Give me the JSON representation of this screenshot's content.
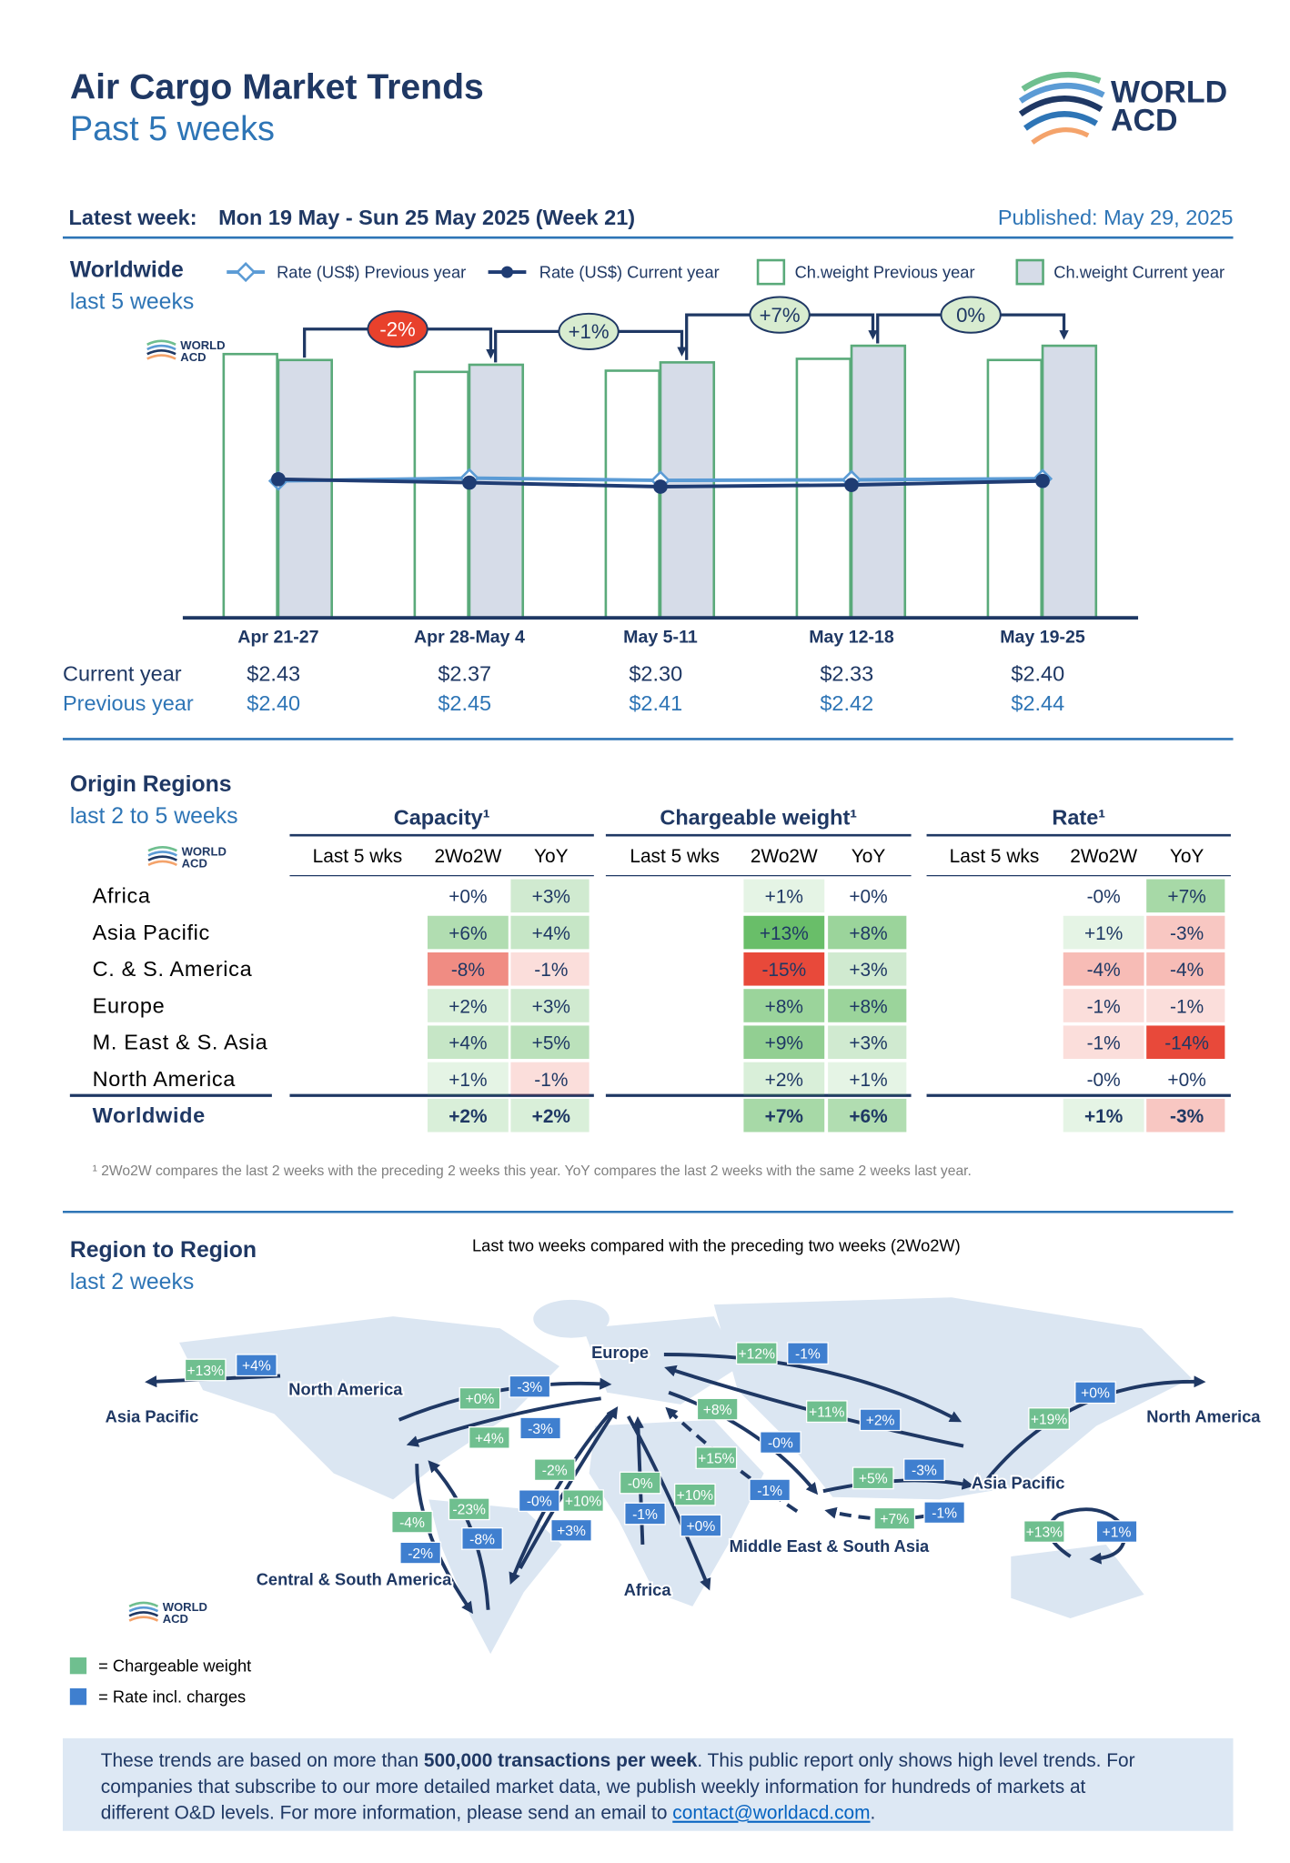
{
  "header": {
    "title": "Air Cargo Market Trends",
    "subtitle": "Past 5 weeks",
    "logo": {
      "line1": "WORLD",
      "line2": "ACD"
    }
  },
  "week": {
    "label": "Latest week:",
    "period": "Mon 19 May - Sun 25 May 2025 (Week 21)",
    "published": "Published: May 29, 2025"
  },
  "worldwide": {
    "title": "Worldwide",
    "subtitle": "last 5 weeks",
    "row_labels": [
      "Current year",
      "Previous year"
    ]
  },
  "chart_data": {
    "type": "bar",
    "categories": [
      "Apr 21-27",
      "Apr 28-May 4",
      "May 5-11",
      "May 12-18",
      "May 19-25"
    ],
    "series": [
      {
        "name": "Ch.weight Previous year",
        "color": "#ffffff",
        "values": [
          222,
          207,
          208,
          218,
          217
        ]
      },
      {
        "name": "Ch.weight Current year",
        "color": "#d6dce8",
        "values": [
          217,
          213,
          215,
          229,
          229
        ]
      },
      {
        "name": "Rate (US$) Previous year",
        "type": "line",
        "axis": "y2",
        "color": "#5b9bd5",
        "values": [
          2.4,
          2.45,
          2.41,
          2.42,
          2.44
        ],
        "value_labels": [
          "$2.40",
          "$2.45",
          "$2.41",
          "$2.42",
          "$2.44"
        ]
      },
      {
        "name": "Rate (US$) Current year",
        "type": "line",
        "axis": "y2",
        "color": "#1f3c73",
        "values": [
          2.43,
          2.37,
          2.3,
          2.33,
          2.4
        ],
        "value_labels": [
          "$2.43",
          "$2.37",
          "$2.30",
          "$2.33",
          "$2.40"
        ]
      }
    ],
    "ylim": [
      0,
      240
    ],
    "y2lim": [
      0,
      5
    ],
    "bar_border": "#5aaa7a",
    "change_values": [
      -2,
      1,
      7,
      0
    ],
    "change_labels": [
      "-2%",
      "+1%",
      "+7%",
      "0%"
    ]
  },
  "origin": {
    "title": "Origin Regions",
    "subtitle": "last 2 to 5 weeks",
    "groups": [
      "Capacity¹",
      "Chargeable weight¹",
      "Rate¹"
    ],
    "columns": [
      "Last 5 wks",
      "2Wo2W",
      "YoY"
    ],
    "rows": [
      {
        "region": "Africa",
        "cells": [
          "+0%",
          "+3%",
          "+1%",
          "+0%",
          "-0%",
          "+7%"
        ]
      },
      {
        "region": "Asia Pacific",
        "cells": [
          "+6%",
          "+4%",
          "+13%",
          "+8%",
          "+1%",
          "-3%"
        ]
      },
      {
        "region": "C. & S. America",
        "cells": [
          "-8%",
          "-1%",
          "-15%",
          "+3%",
          "-4%",
          "-4%"
        ]
      },
      {
        "region": "Europe",
        "cells": [
          "+2%",
          "+3%",
          "+8%",
          "+8%",
          "-1%",
          "-1%"
        ]
      },
      {
        "region": "M. East & S. Asia",
        "cells": [
          "+4%",
          "+5%",
          "+9%",
          "+3%",
          "-1%",
          "-14%"
        ]
      },
      {
        "region": "North America",
        "cells": [
          "+1%",
          "-1%",
          "+2%",
          "+1%",
          "-0%",
          "+0%"
        ]
      },
      {
        "region": "Worldwide",
        "cells": [
          "+2%",
          "+2%",
          "+7%",
          "+6%",
          "+1%",
          "-3%"
        ]
      }
    ],
    "footnote": "¹ 2Wo2W compares the last 2 weeks with the preceding 2 weeks this year. YoY compares the last 2 weeks with the same 2 weeks last year."
  },
  "region_map": {
    "title": "Region to Region",
    "subtitle": "last 2 weeks",
    "note": "Last two weeks compared with the preceding two weeks (2Wo2W)",
    "regions": [
      "Asia Pacific",
      "North America",
      "Europe",
      "Central & South America",
      "Africa",
      "Middle East & South Asia",
      "Asia Pacific",
      "North America"
    ],
    "flows": [
      {
        "cw": "+13%",
        "rate": "+4%"
      },
      {
        "cw": "+0%",
        "rate": "-3%"
      },
      {
        "cw": "+4%",
        "rate": "-3%"
      },
      {
        "cw": "-4%",
        "rate": "-2%"
      },
      {
        "cw": "-23%",
        "rate": "-8%"
      },
      {
        "cw": "-2%",
        "rate": "-0%"
      },
      {
        "cw": "+10%",
        "rate": "+3%"
      },
      {
        "cw": "-0%",
        "rate": "-1%"
      },
      {
        "cw": "+10%",
        "rate": "+0%"
      },
      {
        "cw": "+12%",
        "rate": "-1%"
      },
      {
        "cw": "+11%",
        "rate": "+2%"
      },
      {
        "cw": "+8%",
        "rate": "-0%"
      },
      {
        "cw": "+15%",
        "rate": "-1%"
      },
      {
        "cw": "+5%",
        "rate": "-3%"
      },
      {
        "cw": "+7%",
        "rate": "-1%"
      },
      {
        "cw": "+19%",
        "rate": "+0%"
      },
      {
        "cw": "+13%",
        "rate": "+1%"
      }
    ],
    "legend": [
      "= Chargeable weight",
      "= Rate incl. charges"
    ]
  },
  "footer": {
    "line1_a": "These trends are based on more than ",
    "line1_bold": "500,000 transactions per week",
    "line1_b": ". This public report only shows high level trends. For",
    "line2": "companies that subscribe to our more detailed market data, we publish weekly information for hundreds of markets at",
    "line3_a": "different O&D levels. For more information, please send an email to ",
    "email": "contact@worldacd.com",
    "line3_b": "."
  }
}
